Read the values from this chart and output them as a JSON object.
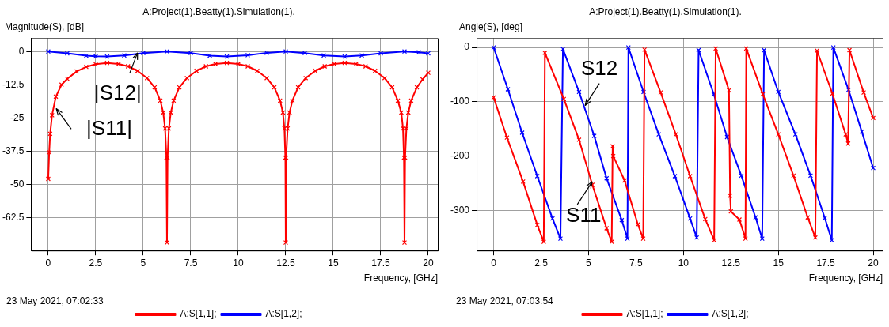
{
  "chart_data": [
    {
      "type": "line",
      "title": "A:Project(1).Beatty(1).Simulation(1).",
      "xlabel": "Frequency, [GHz]",
      "ylabel": "Magnitude(S), [dB]",
      "annotations": [
        "23 May 2021, 07:02:33",
        {
          "text": "|S12|",
          "x": 4.7,
          "y": -0.5
        },
        {
          "text": "|S11|",
          "x": 0.42,
          "y": -21.5
        }
      ],
      "xlim": [
        -0.9,
        20.5
      ],
      "xticks": [
        0,
        2.5,
        5,
        7.5,
        10,
        12.5,
        15,
        17.5,
        20
      ],
      "ylim": [
        -75,
        5
      ],
      "yticks": [
        0,
        -12.5,
        -25,
        -37.5,
        -50,
        -62.5
      ],
      "grid": true,
      "legend": "bottom",
      "marker": "cross",
      "line_style": "solid",
      "series": [
        {
          "name": "A:S[1,1];",
          "color": "#ff0000",
          "x": [
            0,
            0.05,
            0.1,
            0.2,
            0.4,
            0.7,
            1,
            1.5,
            2,
            2.5,
            3.1,
            3.7,
            4.2,
            4.7,
            5.2,
            5.6,
            5.9,
            6.05,
            6.15,
            6.22,
            6.25,
            6.28,
            6.35,
            6.45,
            6.6,
            6.9,
            7.3,
            7.8,
            8.3,
            8.8,
            9.4,
            10,
            10.5,
            11,
            11.5,
            11.9,
            12.2,
            12.35,
            12.43,
            12.48,
            12.5,
            12.52,
            12.6,
            12.7,
            12.85,
            13.15,
            13.55,
            14.05,
            14.55,
            15.05,
            15.6,
            16.2,
            16.7,
            17.2,
            17.7,
            18.1,
            18.4,
            18.58,
            18.67,
            18.72,
            18.75,
            18.78,
            18.85,
            18.95,
            19.1,
            19.4,
            19.7,
            20
          ],
          "values": [
            -48,
            -38,
            -31,
            -24,
            -17,
            -12.5,
            -10.3,
            -7.5,
            -5.8,
            -4.8,
            -4.3,
            -4.7,
            -5.6,
            -7.3,
            -10,
            -13.5,
            -18.5,
            -23,
            -29,
            -40,
            -72,
            -40,
            -29,
            -23,
            -18.5,
            -13.5,
            -10,
            -7.3,
            -5.6,
            -4.7,
            -4.3,
            -4.7,
            -5.6,
            -7.3,
            -10,
            -13.5,
            -18.5,
            -23,
            -29,
            -40,
            -72,
            -40,
            -29,
            -23,
            -18.5,
            -13.5,
            -10,
            -7.3,
            -5.6,
            -4.7,
            -4.3,
            -4.7,
            -5.6,
            -7.3,
            -10,
            -13.5,
            -18.5,
            -23,
            -29,
            -40,
            -72,
            -40,
            -29,
            -23,
            -18.5,
            -13.5,
            -10.5,
            -8
          ]
        },
        {
          "name": "A:S[1,2];",
          "color": "#0000ff",
          "x": [
            0,
            1,
            2,
            2.5,
            3.1,
            4,
            5,
            6.25,
            7.5,
            8.5,
            9.4,
            10.5,
            11.5,
            12.5,
            13.5,
            14.5,
            15.6,
            16.5,
            17.5,
            18.75,
            19.5,
            20
          ],
          "values": [
            0,
            -0.7,
            -1.6,
            -1.8,
            -1.9,
            -1.5,
            -0.6,
            0,
            -0.6,
            -1.6,
            -1.9,
            -1.4,
            -0.5,
            0,
            -0.6,
            -1.5,
            -1.9,
            -1.5,
            -0.7,
            0,
            -0.3,
            -0.7
          ]
        }
      ]
    },
    {
      "type": "line",
      "title": "A:Project(1).Beatty(1).Simulation(1).",
      "xlabel": "Frequency, [GHz]",
      "ylabel": "Angle(S), [deg]",
      "annotations": [
        "23 May 2021, 07:03:54",
        {
          "text": "S12",
          "x": 4.82,
          "y": -107
        },
        {
          "text": "S11",
          "x": 5.2,
          "y": -247
        }
      ],
      "xlim": [
        -0.9,
        20.5
      ],
      "xticks": [
        0,
        2.5,
        5,
        7.5,
        10,
        12.5,
        15,
        17.5,
        20
      ],
      "ylim": [
        -374,
        17
      ],
      "yticks": [
        0,
        -100,
        -200,
        -300
      ],
      "grid": true,
      "legend": "bottom",
      "marker": "cross",
      "line_style": "solid",
      "series": [
        {
          "name": "A:S[1,1];",
          "color": "#ff0000",
          "x": [
            0,
            0.7,
            1.55,
            2.3,
            2.64,
            2.7,
            3.7,
            4.5,
            5.2,
            5.95,
            6.22,
            6.27,
            6.3,
            6.9,
            7.6,
            7.88,
            7.95,
            8.8,
            9.6,
            10.35,
            11.15,
            11.62,
            11.7,
            12.4,
            12.46,
            12.5,
            12.95,
            13.27,
            13.31,
            14.18,
            15,
            15.8,
            16.55,
            16.95,
            17.04,
            17.85,
            18.55,
            18.68,
            18.75,
            19.5,
            20
          ],
          "values": [
            -92,
            -166,
            -247,
            -327,
            -358,
            -10,
            -95,
            -170,
            -253,
            -333,
            -358,
            -182,
            -200,
            -245,
            -326,
            -352,
            -4,
            -83,
            -160,
            -237,
            -316,
            -355,
            -2,
            -79,
            -273,
            -302,
            -317,
            -352,
            -2,
            -86,
            -160,
            -236,
            -313,
            -350,
            -6,
            -85,
            -160,
            -177,
            -5,
            -83,
            -130
          ]
        },
        {
          "name": "A:S[1,2];",
          "color": "#0000ff",
          "x": [
            0,
            0.75,
            1.5,
            2.3,
            3.1,
            3.52,
            3.65,
            4.5,
            5.3,
            5.95,
            6.75,
            7.05,
            7.1,
            7.9,
            8.7,
            9.55,
            10.35,
            10.7,
            10.8,
            11.6,
            12.3,
            13.05,
            13.8,
            14.15,
            14.25,
            15,
            15.9,
            16.7,
            17.45,
            17.82,
            17.9,
            18.7,
            19.4,
            20
          ],
          "values": [
            0,
            -77,
            -157,
            -237,
            -315,
            -352,
            -3,
            -82,
            -163,
            -241,
            -318,
            -352,
            0,
            -82,
            -160,
            -237,
            -315,
            -350,
            -5,
            -86,
            -165,
            -236,
            -313,
            -352,
            -5,
            -82,
            -160,
            -236,
            -314,
            -355,
            0,
            -78,
            -155,
            -222
          ]
        }
      ]
    }
  ]
}
